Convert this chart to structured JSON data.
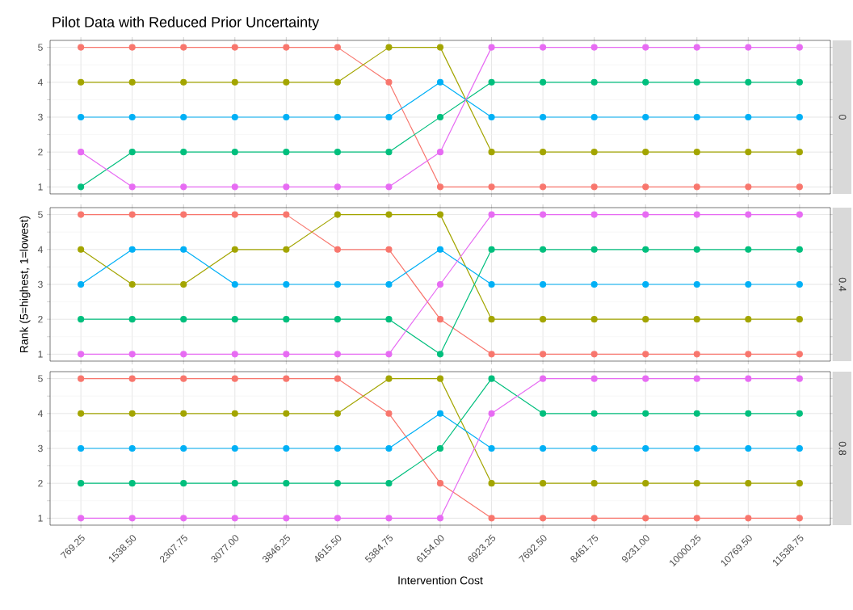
{
  "chart_data": [
    {
      "type": "line",
      "title": "Pilot Data with Reduced Prior Uncertainty",
      "y2label": "0",
      "tick_labels": "y",
      "categories": [
        "769.25",
        "1538.50",
        "2307.75",
        "3077.00",
        "3846.25",
        "4615.50",
        "5384.75",
        "6154.00",
        "6923.25",
        "7692.50",
        "8461.75",
        "9231.00",
        "10000.25",
        "10769.50",
        "11538.75"
      ],
      "ylim": [
        0.8,
        5.2
      ],
      "yticks": [
        1,
        2,
        3,
        4,
        5
      ],
      "grid": true,
      "marker": "circle",
      "line_style": "solid",
      "series": [
        {
          "color": "#F8766D",
          "values": [
            5,
            5,
            5,
            5,
            5,
            5,
            4,
            1,
            1,
            1,
            1,
            1,
            1,
            1,
            1
          ]
        },
        {
          "color": "#A3A500",
          "values": [
            4,
            4,
            4,
            4,
            4,
            4,
            5,
            5,
            2,
            2,
            2,
            2,
            2,
            2,
            2
          ]
        },
        {
          "color": "#00B0F6",
          "values": [
            3,
            3,
            3,
            3,
            3,
            3,
            3,
            4,
            3,
            3,
            3,
            3,
            3,
            3,
            3
          ]
        },
        {
          "color": "#00BF7D",
          "values": [
            1,
            2,
            2,
            2,
            2,
            2,
            2,
            3,
            4,
            4,
            4,
            4,
            4,
            4,
            4
          ]
        },
        {
          "color": "#E76BF3",
          "values": [
            2,
            1,
            1,
            1,
            1,
            1,
            1,
            2,
            5,
            5,
            5,
            5,
            5,
            5,
            5
          ]
        }
      ]
    },
    {
      "type": "line",
      "ylabel": "Rank (5=highest, 1=lowest)",
      "y2label": "0.4",
      "tick_labels": "y",
      "categories": [
        "769.25",
        "1538.50",
        "2307.75",
        "3077.00",
        "3846.25",
        "4615.50",
        "5384.75",
        "6154.00",
        "6923.25",
        "7692.50",
        "8461.75",
        "9231.00",
        "10000.25",
        "10769.50",
        "11538.75"
      ],
      "ylim": [
        0.8,
        5.2
      ],
      "yticks": [
        1,
        2,
        3,
        4,
        5
      ],
      "grid": true,
      "marker": "circle",
      "line_style": "solid",
      "series": [
        {
          "color": "#F8766D",
          "values": [
            5,
            5,
            5,
            5,
            5,
            4,
            4,
            2,
            1,
            1,
            1,
            1,
            1,
            1,
            1
          ]
        },
        {
          "color": "#A3A500",
          "values": [
            4,
            3,
            3,
            4,
            4,
            5,
            5,
            5,
            2,
            2,
            2,
            2,
            2,
            2,
            2
          ]
        },
        {
          "color": "#00B0F6",
          "values": [
            3,
            4,
            4,
            3,
            3,
            3,
            3,
            4,
            3,
            3,
            3,
            3,
            3,
            3,
            3
          ]
        },
        {
          "color": "#00BF7D",
          "values": [
            2,
            2,
            2,
            2,
            2,
            2,
            2,
            1,
            4,
            4,
            4,
            4,
            4,
            4,
            4
          ]
        },
        {
          "color": "#E76BF3",
          "values": [
            1,
            1,
            1,
            1,
            1,
            1,
            1,
            3,
            5,
            5,
            5,
            5,
            5,
            5,
            5
          ]
        }
      ]
    },
    {
      "type": "line",
      "xlabel": "Intervention Cost",
      "y2label": "0.8",
      "categories": [
        "769.25",
        "1538.50",
        "2307.75",
        "3077.00",
        "3846.25",
        "4615.50",
        "5384.75",
        "6154.00",
        "6923.25",
        "7692.50",
        "8461.75",
        "9231.00",
        "10000.25",
        "10769.50",
        "11538.75"
      ],
      "ylim": [
        0.8,
        5.2
      ],
      "yticks": [
        1,
        2,
        3,
        4,
        5
      ],
      "grid": true,
      "marker": "circle",
      "line_style": "solid",
      "series": [
        {
          "color": "#F8766D",
          "values": [
            5,
            5,
            5,
            5,
            5,
            5,
            4,
            2,
            1,
            1,
            1,
            1,
            1,
            1,
            1
          ]
        },
        {
          "color": "#A3A500",
          "values": [
            4,
            4,
            4,
            4,
            4,
            4,
            5,
            5,
            2,
            2,
            2,
            2,
            2,
            2,
            2
          ]
        },
        {
          "color": "#00B0F6",
          "values": [
            3,
            3,
            3,
            3,
            3,
            3,
            3,
            4,
            3,
            3,
            3,
            3,
            3,
            3,
            3
          ]
        },
        {
          "color": "#00BF7D",
          "values": [
            2,
            2,
            2,
            2,
            2,
            2,
            2,
            3,
            5,
            4,
            4,
            4,
            4,
            4,
            4
          ]
        },
        {
          "color": "#E76BF3",
          "values": [
            1,
            1,
            1,
            1,
            1,
            1,
            1,
            1,
            4,
            5,
            5,
            5,
            5,
            5,
            5
          ]
        }
      ]
    }
  ]
}
